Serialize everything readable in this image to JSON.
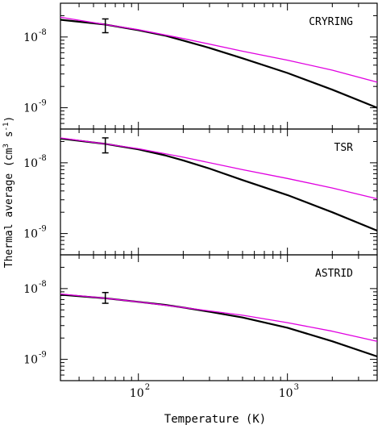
{
  "chart_data": {
    "type": "line",
    "xlabel": "Temperature (K)",
    "ylabel": "Thermal average (cm^3 s^-1)",
    "x_scale": "log",
    "y_scale": "log",
    "xlim": [
      30,
      4000
    ],
    "x_ticks": [
      {
        "value": 100,
        "label": "10",
        "exp": "2"
      },
      {
        "value": 1000,
        "label": "10",
        "exp": "3"
      }
    ],
    "y_ticks": [
      {
        "value": 1e-09,
        "label": "10",
        "exp": "-9"
      },
      {
        "value": 1e-08,
        "label": "10",
        "exp": "-8"
      }
    ],
    "colors": {
      "black_series": "#000000",
      "magenta_series": "#e000e0"
    },
    "panels": [
      {
        "name": "CRYRING",
        "ylim": [
          5e-10,
          3e-08
        ],
        "series": [
          {
            "color": "black",
            "x": [
              30,
              60,
              100,
              150,
              200,
              300,
              500,
              1000,
              2000,
              4000
            ],
            "y": [
              1.75e-08,
              1.5e-08,
              1.25e-08,
              1.05e-08,
              8.9e-09,
              7e-09,
              5e-09,
              3.1e-09,
              1.8e-09,
              1e-09
            ]
          },
          {
            "color": "magenta",
            "x": [
              30,
              60,
              100,
              200,
              500,
              1000,
              2000,
              4000
            ],
            "y": [
              1.9e-08,
              1.5e-08,
              1.27e-08,
              9.5e-09,
              6.3e-09,
              4.7e-09,
              3.4e-09,
              2.3e-09
            ]
          }
        ],
        "error_bar": {
          "x": 60,
          "y": 1.45e-08,
          "low": 1.15e-08,
          "high": 1.8e-08
        }
      },
      {
        "name": "TSR",
        "ylim": [
          5e-10,
          3e-08
        ],
        "series": [
          {
            "color": "black",
            "x": [
              30,
              60,
              100,
              150,
              200,
              300,
              500,
              1000,
              2000,
              4000
            ],
            "y": [
              2.2e-08,
              1.85e-08,
              1.55e-08,
              1.28e-08,
              1.08e-08,
              8.3e-09,
              5.7e-09,
              3.5e-09,
              2e-09,
              1.1e-09
            ]
          },
          {
            "color": "magenta",
            "x": [
              30,
              60,
              100,
              200,
              500,
              1000,
              2000,
              4000
            ],
            "y": [
              2.25e-08,
              1.85e-08,
              1.58e-08,
              1.2e-08,
              8e-09,
              6e-09,
              4.4e-09,
              3.1e-09
            ]
          }
        ],
        "error_bar": {
          "x": 60,
          "y": 1.75e-08,
          "low": 1.38e-08,
          "high": 2.25e-08
        }
      },
      {
        "name": "ASTRID",
        "ylim": [
          5e-10,
          3e-08
        ],
        "series": [
          {
            "color": "black",
            "x": [
              30,
              60,
              100,
              150,
              200,
              300,
              500,
              1000,
              2000,
              4000
            ],
            "y": [
              8.2e-09,
              7.3e-09,
              6.5e-09,
              5.9e-09,
              5.4e-09,
              4.7e-09,
              3.9e-09,
              2.8e-09,
              1.8e-09,
              1.1e-09
            ]
          },
          {
            "color": "magenta",
            "x": [
              30,
              60,
              100,
              200,
              500,
              1000,
              2000,
              4000
            ],
            "y": [
              8.4e-09,
              7.3e-09,
              6.5e-09,
              5.4e-09,
              4.2e-09,
              3.3e-09,
              2.5e-09,
              1.8e-09
            ]
          }
        ],
        "error_bar": {
          "x": 60,
          "y": 7.4e-09,
          "low": 6.2e-09,
          "high": 8.8e-09
        }
      }
    ]
  }
}
